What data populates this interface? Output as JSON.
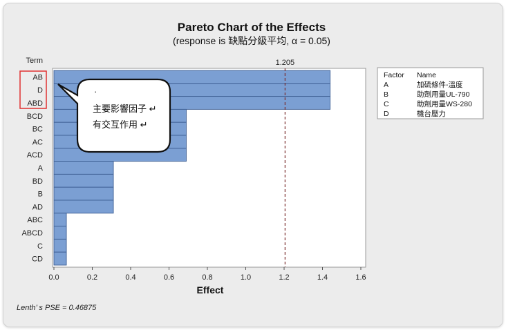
{
  "chart_data": {
    "type": "bar",
    "orientation": "horizontal",
    "title": "Pareto Chart of the Effects",
    "subtitle": "(response is 缺點分級平均, α = 0.05)",
    "ylabel": "Term",
    "xlabel": "Effect",
    "categories": [
      "AB",
      "D",
      "ABD",
      "BCD",
      "BC",
      "AC",
      "ACD",
      "A",
      "BD",
      "B",
      "AD",
      "ABC",
      "ABCD",
      "C",
      "CD"
    ],
    "values": [
      1.44,
      1.44,
      1.44,
      0.69,
      0.69,
      0.69,
      0.69,
      0.31,
      0.31,
      0.31,
      0.31,
      0.065,
      0.065,
      0.065,
      0.065
    ],
    "xlim": [
      0,
      1.6
    ],
    "xticks": [
      "0.0",
      "0.2",
      "0.4",
      "0.6",
      "0.8",
      "1.0",
      "1.2",
      "1.4",
      "1.6"
    ],
    "reference_line": {
      "value": 1.205,
      "label": "1.205"
    },
    "grid": false,
    "legend": {
      "placement": "right",
      "headers": [
        "Factor",
        "Name"
      ],
      "entries": [
        {
          "factor": "A",
          "name": "加硫條件-溫度"
        },
        {
          "factor": "B",
          "name": "助劑用量UL-790"
        },
        {
          "factor": "C",
          "name": "助劑用量WS-280"
        },
        {
          "factor": "D",
          "name": "機台壓力"
        }
      ]
    },
    "annotation": {
      "dot": "·",
      "lines": [
        "主要影響因子 ↵",
        "有交互作用 ↵"
      ],
      "highlighted_terms": [
        "AB",
        "D",
        "ABD"
      ]
    },
    "footnote": "Lenth’ s PSE = 0.46875"
  },
  "colors": {
    "bar_fill": "#7b9fd3",
    "bar_stroke": "#3e5f93",
    "ref_line": "#7a2e2e",
    "highlight_box": "#e03030",
    "frame_bg": "#ececec",
    "plot_bg": "#ffffff"
  }
}
